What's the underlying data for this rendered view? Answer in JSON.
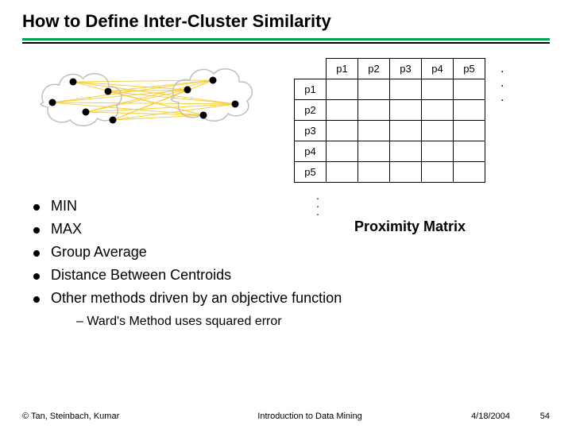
{
  "title": "How to Define Inter-Cluster Similarity",
  "rule_color_top": "#00a651",
  "clusters": {
    "cloud_stroke": "#bfbfbf",
    "point_color": "#000000",
    "edge_color": "#f4d03f",
    "left_points": [
      [
        28,
        56
      ],
      [
        54,
        30
      ],
      [
        70,
        68
      ],
      [
        98,
        42
      ],
      [
        104,
        78
      ]
    ],
    "right_points": [
      [
        198,
        40
      ],
      [
        230,
        28
      ],
      [
        258,
        58
      ],
      [
        218,
        72
      ]
    ]
  },
  "matrix": {
    "col_headers": [
      "p1",
      "p2",
      "p3",
      "p4",
      "p5"
    ],
    "row_headers": [
      "p1",
      "p2",
      "p3",
      "p4",
      "p5"
    ],
    "dots_h": ". . .",
    "caption": "Proximity Matrix"
  },
  "bullets": {
    "items": [
      "MIN",
      "MAX",
      "Group Average",
      "Distance Between Centroids",
      "Other methods driven by an objective function"
    ],
    "sub": "– Ward's Method uses squared error"
  },
  "footer": {
    "left": "© Tan, Steinbach, Kumar",
    "mid": "Introduction to Data Mining",
    "date": "4/18/2004",
    "page": "54"
  }
}
